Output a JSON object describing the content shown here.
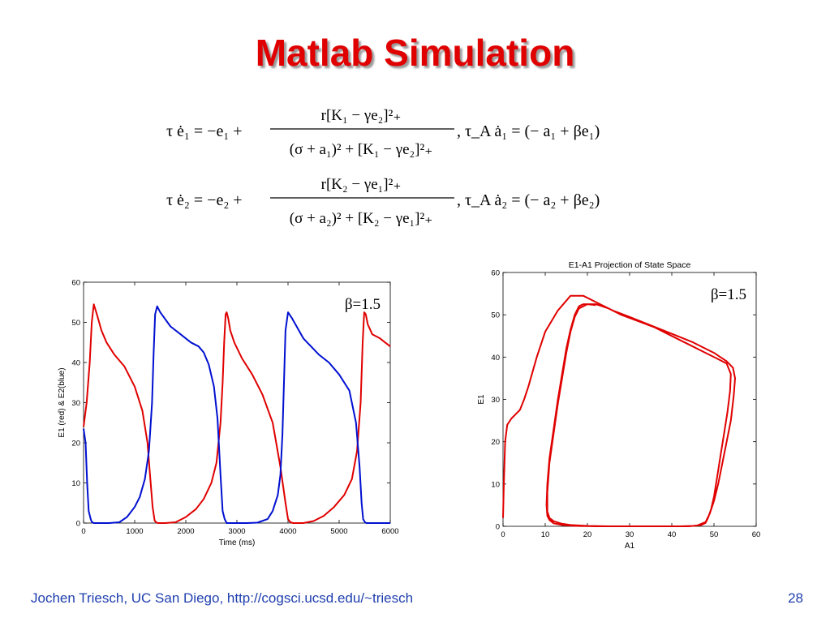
{
  "slide": {
    "title": "Matlab Simulation",
    "footer_left": "Jochen Triesch, UC San Diego, http://cogsci.ucsd.edu/~triesch",
    "page_number": "28"
  },
  "equations": {
    "eq1": {
      "lhs": "τ ė₁ = −e₁ +",
      "numerator": "r[K₁ − γe₂]²₊",
      "denominator": "(σ + a₁)² + [K₁ − γe₂]²₊",
      "adapt": ",  τ_A ȧ₁ = (− a₁ + βe₁)"
    },
    "eq2": {
      "lhs": "τ ė₂ = −e₂ +",
      "numerator": "r[K₂ − γe₁]²₊",
      "denominator": "(σ + a₂)² + [K₂ − γe₁]²₊",
      "adapt": ",  τ_A ȧ₂ = (− a₂ + βe₂)"
    }
  },
  "colors": {
    "title": "#e00000",
    "footer": "#1f3fae",
    "red_series": "#e00000",
    "blue_series": "#0010d0"
  },
  "chart_data": [
    {
      "type": "line",
      "title": "",
      "xlabel": "Time (ms)",
      "ylabel": "E1 (red) & E2(blue)",
      "annotation": "β=1.5",
      "xlim": [
        0,
        6000
      ],
      "ylim": [
        0,
        60
      ],
      "xticks": [
        "0",
        "1000",
        "2000",
        "3000",
        "4000",
        "5000",
        "6000"
      ],
      "yticks": [
        "0",
        "10",
        "20",
        "30",
        "40",
        "50",
        "60"
      ],
      "series": [
        {
          "color": "#e00000",
          "x": [
            0,
            60,
            120,
            160,
            200,
            260,
            350,
            450,
            600,
            800,
            1000,
            1150,
            1250,
            1300,
            1350,
            1390,
            1420,
            1450,
            1500,
            1600,
            1800,
            2000,
            2200,
            2350,
            2500,
            2600,
            2680,
            2720,
            2750,
            2780,
            2800,
            2830,
            2870,
            2950,
            3100,
            3300,
            3500,
            3700,
            3850,
            3950,
            4000,
            4040,
            4070,
            4100,
            4130,
            4160,
            4200,
            4300,
            4500,
            4700,
            4900,
            5100,
            5250,
            5350,
            5420,
            5460,
            5490,
            5520,
            5560,
            5650,
            5800,
            5900,
            6000
          ],
          "y": [
            24,
            30,
            40,
            50,
            54.5,
            52,
            48,
            45,
            42,
            39,
            34,
            28,
            20,
            12,
            4,
            0.6,
            0.2,
            0,
            0,
            0,
            0.2,
            1.5,
            3.5,
            6,
            10,
            15,
            25,
            35,
            45,
            52,
            52.5,
            51,
            48,
            45,
            41,
            37,
            32,
            25,
            14,
            5,
            1,
            0.3,
            0.1,
            0,
            0,
            0,
            0,
            0,
            0.5,
            1.8,
            4,
            7,
            11,
            18,
            30,
            45,
            52.5,
            52,
            49.5,
            47,
            46,
            45,
            44
          ]
        },
        {
          "color": "#0010d0",
          "x": [
            0,
            40,
            70,
            100,
            140,
            160,
            200,
            300,
            500,
            700,
            850,
            1000,
            1100,
            1200,
            1280,
            1340,
            1370,
            1400,
            1440,
            1500,
            1700,
            1900,
            2100,
            2250,
            2350,
            2450,
            2550,
            2620,
            2680,
            2720,
            2760,
            2800,
            3000,
            3200,
            3400,
            3600,
            3700,
            3800,
            3850,
            3890,
            3920,
            3950,
            4000,
            4080,
            4300,
            4600,
            4800,
            5000,
            5200,
            5330,
            5400,
            5440,
            5470,
            5500,
            5530,
            5560,
            5600,
            5800,
            6000
          ],
          "y": [
            23.5,
            20,
            10,
            3,
            1,
            0.3,
            0,
            0,
            0,
            0.2,
            1.5,
            4,
            6.5,
            11,
            18,
            30,
            42,
            52,
            54,
            52.5,
            49,
            47,
            45,
            44,
            42.5,
            39.5,
            34,
            26,
            12,
            3,
            1,
            0,
            0,
            0,
            0.1,
            1,
            3,
            7,
            12,
            22,
            35,
            48,
            52.5,
            51,
            46,
            42,
            40,
            37,
            33,
            25,
            14,
            5,
            1,
            0.3,
            0,
            0,
            0,
            0,
            0
          ]
        }
      ]
    },
    {
      "type": "line",
      "title": "E1-A1 Projection of State Space",
      "xlabel": "A1",
      "ylabel": "E1",
      "annotation": "β=1.5",
      "xlim": [
        0,
        60
      ],
      "ylim": [
        0,
        60
      ],
      "xticks": [
        "0",
        "10",
        "20",
        "30",
        "40",
        "50",
        "60"
      ],
      "yticks": [
        "0",
        "10",
        "20",
        "30",
        "40",
        "50",
        "60"
      ],
      "series": [
        {
          "color": "#e00000",
          "x": [
            0,
            0.2,
            0.5,
            1,
            2,
            3,
            4,
            5,
            6,
            8,
            10,
            13,
            16,
            19,
            22,
            26,
            30,
            35,
            40,
            45,
            50,
            53,
            54.5,
            55,
            54.7,
            54,
            53,
            52,
            51,
            50,
            49,
            48,
            46,
            44,
            40,
            35,
            30,
            25,
            20,
            16,
            14,
            12,
            11,
            10.5,
            10.5,
            11,
            12,
            13,
            14,
            15,
            16,
            17,
            18,
            20,
            22,
            25,
            28,
            32,
            36,
            40,
            44,
            48,
            51,
            53,
            54,
            53.8,
            53.2,
            52.4,
            51.6,
            50.8,
            50,
            49.3,
            48.6,
            48,
            47,
            45,
            42,
            38,
            33,
            28,
            22,
            17,
            14,
            12,
            11,
            10.5,
            10.3,
            10.5,
            11,
            12,
            13,
            14,
            15,
            16,
            17,
            18,
            19,
            20,
            22
          ],
          "y": [
            2,
            10,
            20,
            24,
            25.5,
            26.5,
            27.5,
            30,
            33,
            40,
            46,
            51,
            54.5,
            54.5,
            53,
            51,
            49.5,
            47.5,
            45.5,
            43.5,
            41,
            39,
            37.5,
            35,
            31,
            25,
            20,
            15,
            10,
            6,
            3,
            1,
            0.2,
            0,
            0,
            0,
            0,
            0,
            0.1,
            0.3,
            0.6,
            1.2,
            2,
            3.5,
            8,
            15,
            22,
            29,
            35,
            41,
            46,
            49.5,
            51.5,
            52.5,
            52.5,
            51.5,
            50,
            48.5,
            47,
            45,
            43,
            41,
            39.5,
            38.5,
            36,
            32,
            27,
            22,
            17,
            12,
            7,
            4,
            2,
            0.8,
            0.3,
            0.1,
            0,
            0,
            0,
            0,
            0,
            0.1,
            0.3,
            0.7,
            1.5,
            2.5,
            5,
            10,
            16,
            23,
            30,
            36,
            42,
            46.5,
            50,
            52,
            52.5,
            52.5,
            52.3
          ]
        }
      ]
    }
  ]
}
